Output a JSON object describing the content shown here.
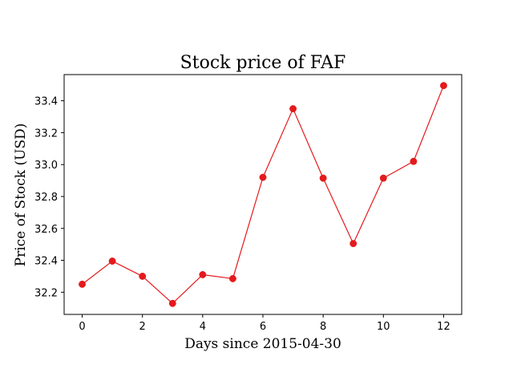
{
  "chart_data": {
    "type": "line",
    "title": "Stock price of FAF",
    "xlabel": "Days since 2015-04-30",
    "ylabel": "Price of Stock (USD)",
    "x": [
      0,
      1,
      2,
      3,
      4,
      5,
      6,
      7,
      8,
      9,
      10,
      11,
      12
    ],
    "series": [
      {
        "values": [
          32.25,
          32.395,
          32.3,
          32.13,
          32.31,
          32.285,
          32.92,
          33.35,
          32.915,
          32.505,
          32.915,
          33.02,
          33.495
        ],
        "color": "#e41a1c",
        "marker": "circle"
      }
    ],
    "xticks": [
      0,
      2,
      4,
      6,
      8,
      10,
      12
    ],
    "yticks": [
      32.2,
      32.4,
      32.6,
      32.8,
      33.0,
      33.2,
      33.4
    ],
    "xtick_labels": [
      "0",
      "2",
      "4",
      "6",
      "8",
      "10",
      "12"
    ],
    "ytick_labels": [
      "32.2",
      "32.4",
      "32.6",
      "32.8",
      "33.0",
      "33.2",
      "33.4"
    ],
    "xlim": [
      -0.6,
      12.6
    ],
    "ylim": [
      32.061,
      33.564
    ],
    "grid": false,
    "legend": false
  }
}
